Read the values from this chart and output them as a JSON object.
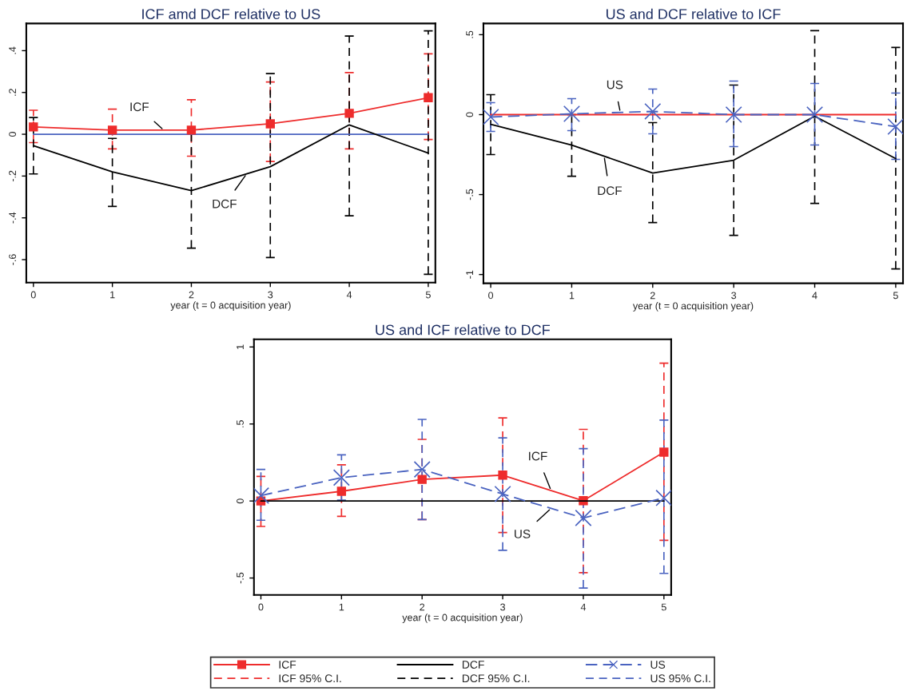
{
  "chart_data": [
    {
      "type": "line",
      "title": "ICF amd DCF relative to US",
      "xlabel": "year (t = 0 acquisition year)",
      "x": [
        0,
        1,
        2,
        3,
        4,
        5
      ],
      "xlim": [
        -0.09,
        5.09
      ],
      "xticks": [
        0,
        1,
        2,
        3,
        4,
        5
      ],
      "ylim": [
        -0.71,
        0.53
      ],
      "yticks": [
        {
          "value": -0.6,
          "label": "-.6"
        },
        {
          "value": -0.4,
          "label": "-.4"
        },
        {
          "value": -0.2,
          "label": "-.2"
        },
        0,
        {
          "value": 0.2,
          "label": ".2"
        },
        {
          "value": 0.4,
          "label": ".4"
        }
      ],
      "grid": false,
      "series": [
        {
          "color": "#4a63c0",
          "values": [
            0,
            0,
            0,
            0,
            0,
            0
          ],
          "marker": "none",
          "line_style": "solid"
        },
        {
          "name": "ICF",
          "color": "#ee2c2c",
          "values": [
            0.035,
            0.02,
            0.02,
            0.05,
            0.1,
            0.175
          ],
          "marker": "square",
          "line_style": "solid",
          "errors": [
            [
              -0.04,
              0.115
            ],
            [
              -0.07,
              0.12
            ],
            [
              -0.105,
              0.165
            ],
            [
              -0.13,
              0.25
            ],
            [
              -0.07,
              0.295
            ],
            [
              -0.025,
              0.385
            ]
          ]
        },
        {
          "name": "DCF",
          "color": "#000000",
          "values": [
            -0.055,
            -0.18,
            -0.27,
            -0.155,
            0.045,
            -0.09
          ],
          "marker": "none",
          "line_style": "solid",
          "errors": [
            [
              -0.19,
              0.08
            ],
            [
              -0.345,
              -0.02
            ],
            [
              -0.545,
              0.0
            ],
            [
              -0.59,
              0.29
            ],
            [
              -0.39,
              0.47
            ],
            [
              -0.67,
              0.495
            ]
          ]
        }
      ],
      "legend": "bottom"
    },
    {
      "type": "line",
      "title": "US and DCF relative to ICF",
      "xlabel": "year (t = 0 acquisition year)",
      "x": [
        0,
        1,
        2,
        3,
        4,
        5
      ],
      "xlim": [
        -0.09,
        5.09
      ],
      "xticks": [
        0,
        1,
        2,
        3,
        4,
        5
      ],
      "ylim": [
        -1.055,
        0.57
      ],
      "yticks": [
        {
          "value": -1,
          "label": "-1"
        },
        {
          "value": -0.5,
          "label": "-.5"
        },
        0,
        {
          "value": 0.5,
          "label": ".5"
        }
      ],
      "grid": false,
      "series": [
        {
          "color": "#ee2c2c",
          "values": [
            0,
            0,
            0,
            0,
            0,
            0
          ],
          "marker": "none",
          "line_style": "solid"
        },
        {
          "name": "DCF",
          "color": "#000000",
          "values": [
            -0.06,
            -0.19,
            -0.365,
            -0.285,
            -0.01,
            -0.275
          ],
          "marker": "none",
          "line_style": "solid",
          "errors": [
            [
              -0.25,
              0.125
            ],
            [
              -0.385,
              0.0
            ],
            [
              -0.675,
              -0.05
            ],
            [
              -0.755,
              0.185
            ],
            [
              -0.555,
              0.525
            ],
            [
              -0.965,
              0.42
            ]
          ]
        },
        {
          "name": "US",
          "color": "#4a63c0",
          "values": [
            -0.015,
            0.005,
            0.02,
            0,
            0,
            -0.075
          ],
          "marker": "cross",
          "line_style": "dashed",
          "errors": [
            [
              -0.105,
              0.075
            ],
            [
              -0.1,
              0.1
            ],
            [
              -0.12,
              0.16
            ],
            [
              -0.2,
              0.21
            ],
            [
              -0.19,
              0.195
            ],
            [
              -0.28,
              0.135
            ]
          ]
        }
      ],
      "legend": "bottom"
    },
    {
      "type": "line",
      "title": "US and ICF relative to DCF",
      "xlabel": "year (t = 0 acquisition year)",
      "x": [
        0,
        1,
        2,
        3,
        4,
        5
      ],
      "xlim": [
        -0.086,
        5.09
      ],
      "xticks": [
        0,
        1,
        2,
        3,
        4,
        5
      ],
      "ylim": [
        -0.61,
        1.05
      ],
      "yticks": [
        {
          "value": -0.5,
          "label": "-.5"
        },
        0,
        {
          "value": 0.5,
          "label": ".5"
        },
        1
      ],
      "grid": false,
      "legend": "bottom",
      "series": [
        {
          "name": "ICF",
          "color": "#ee2c2c",
          "values": [
            0,
            0.063,
            0.14,
            0.168,
            0.002,
            0.317
          ],
          "marker": "square",
          "line_style": "solid",
          "errors": [
            [
              -0.165,
              0.16
            ],
            [
              -0.1,
              0.235
            ],
            [
              -0.12,
              0.4
            ],
            [
              -0.205,
              0.54
            ],
            [
              -0.465,
              0.465
            ],
            [
              -0.255,
              0.895
            ]
          ]
        },
        {
          "color": "#000000",
          "values": [
            0,
            0,
            0,
            0,
            0,
            0
          ],
          "marker": "none",
          "line_style": "solid"
        },
        {
          "name": "US",
          "color": "#4a63c0",
          "values": [
            0.035,
            0.152,
            0.205,
            0.045,
            -0.11,
            0.02
          ],
          "marker": "cross",
          "line_style": "dashed",
          "errors": [
            [
              -0.125,
              0.205
            ],
            [
              0.005,
              0.3
            ],
            [
              -0.12,
              0.53
            ],
            [
              -0.32,
              0.41
            ],
            [
              -0.565,
              0.34
            ],
            [
              -0.47,
              0.525
            ]
          ]
        }
      ],
      "annotations": [
        "ICF 95% C.I.",
        "DCF 95% C.I.",
        "US 95% C.I."
      ]
    }
  ]
}
